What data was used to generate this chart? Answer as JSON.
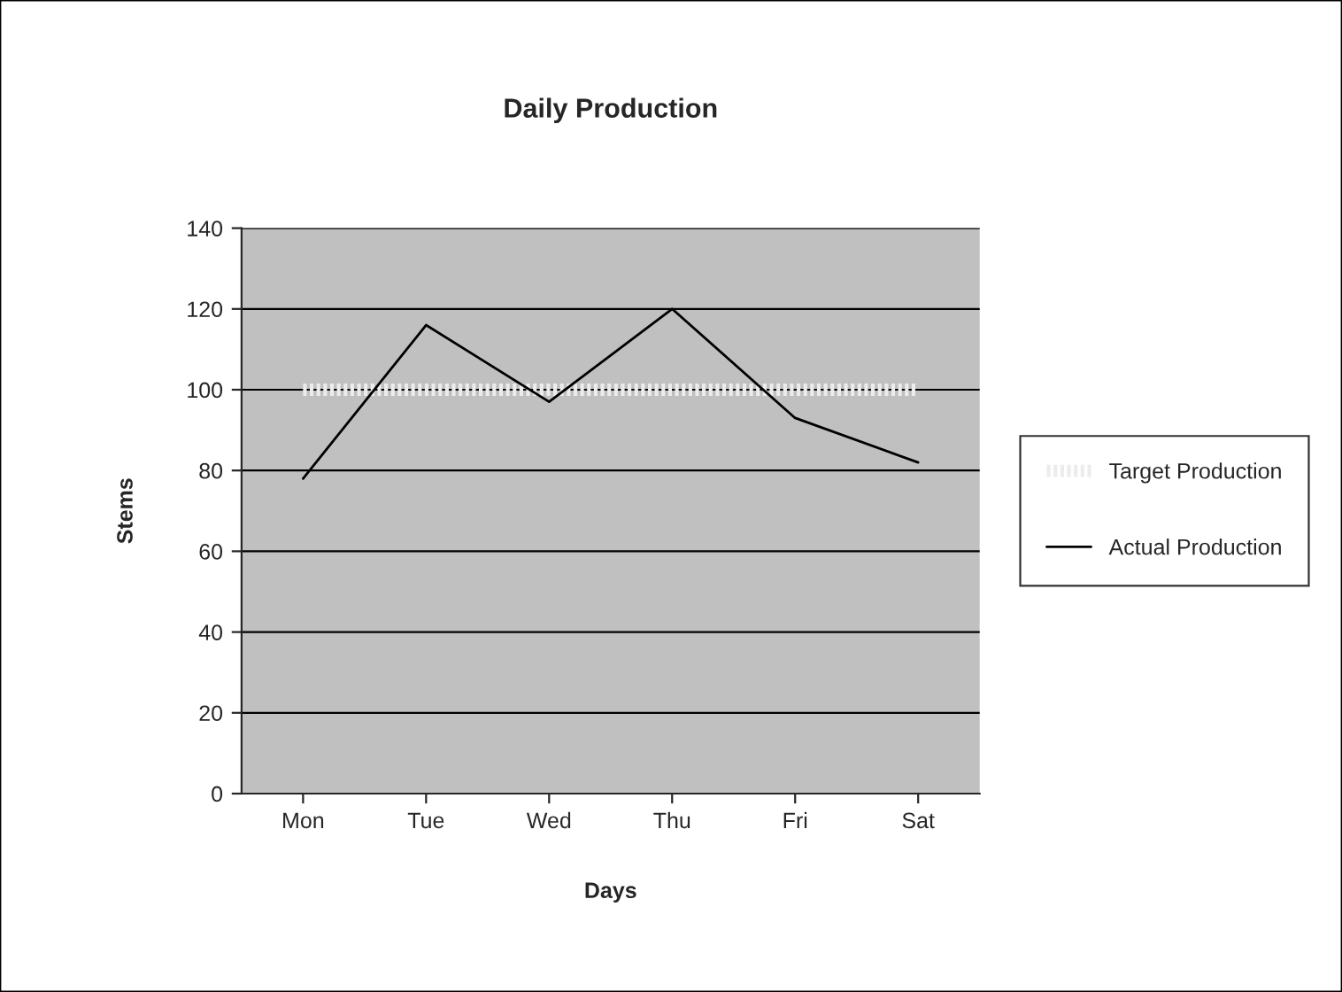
{
  "chart_data": {
    "type": "line",
    "title": "Daily Production",
    "xlabel": "Days",
    "ylabel": "Stems",
    "categories": [
      "Mon",
      "Tue",
      "Wed",
      "Thu",
      "Fri",
      "Sat"
    ],
    "series": [
      {
        "name": "Target Production",
        "color": "#ececec",
        "line_style": "dotted",
        "values": [
          100,
          100,
          100,
          100,
          100,
          100
        ]
      },
      {
        "name": "Actual Production",
        "color": "#000000",
        "line_style": "solid",
        "values": [
          78,
          116,
          97,
          120,
          93,
          82
        ]
      }
    ],
    "ylim": [
      0,
      140
    ],
    "yticks": [
      0,
      20,
      40,
      60,
      80,
      100,
      120,
      140
    ],
    "grid": "y",
    "legend": "right",
    "marker": "none"
  }
}
